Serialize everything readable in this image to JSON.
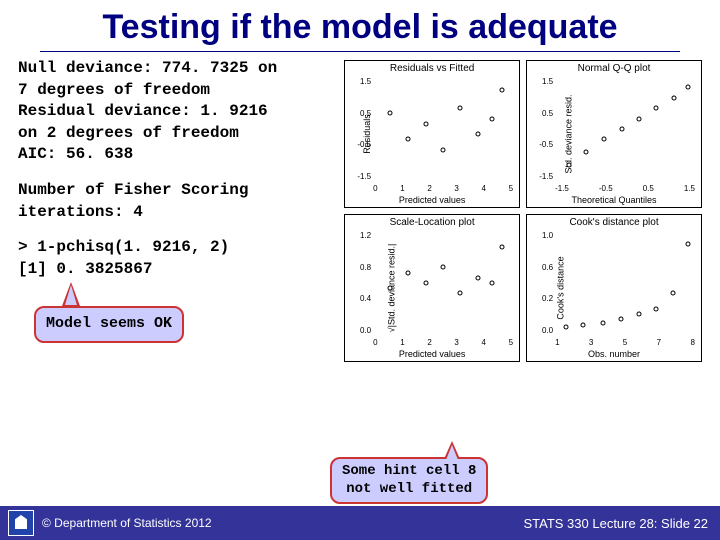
{
  "title": "Testing if the model is adequate",
  "output_block": {
    "line1": "Null deviance: 774. 7325   on",
    "line2": "7  degrees of freedom",
    "line3": "Residual deviance:  1. 9216",
    "line4": "on 2  degrees of freedom",
    "line5": "AIC: 56. 638"
  },
  "fisher_block": {
    "line1": "Number of Fisher Scoring",
    "line2": "iterations: 4"
  },
  "pchisq_block": {
    "line1": "> 1-pchisq(1. 9216, 2)",
    "line2": "[1] 0. 3825867"
  },
  "callout1": "Model seems OK",
  "callout2_line1": "Some hint cell 8",
  "callout2_line2": "not well fitted",
  "plots": {
    "p1": {
      "title": "Residuals vs Fitted",
      "ylab": "Residuals",
      "xlab": "Predicted values",
      "yticks": [
        "1.5",
        "0.5",
        "-0.5",
        "-1.5"
      ],
      "xticks": [
        "0",
        "1",
        "2",
        "3",
        "4",
        "5"
      ],
      "points": [
        [
          12,
          35
        ],
        [
          25,
          60
        ],
        [
          38,
          45
        ],
        [
          50,
          70
        ],
        [
          62,
          30
        ],
        [
          75,
          55
        ],
        [
          85,
          40
        ],
        [
          92,
          12
        ]
      ]
    },
    "p2": {
      "title": "Normal Q-Q plot",
      "ylab": "Std. deviance resid.",
      "xlab": "Theoretical Quantiles",
      "yticks": [
        "1.5",
        "0.5",
        "-0.5",
        "-1.5"
      ],
      "xticks": [
        "-1.5",
        "-1.0",
        "-0.5",
        "0.0",
        "0.5",
        "1.0",
        "1.5"
      ],
      "points": [
        [
          10,
          85
        ],
        [
          22,
          72
        ],
        [
          35,
          60
        ],
        [
          48,
          50
        ],
        [
          60,
          40
        ],
        [
          72,
          30
        ],
        [
          85,
          20
        ],
        [
          95,
          10
        ]
      ]
    },
    "p3": {
      "title": "Scale-Location plot",
      "ylab": "√|Std. deviance resid.|",
      "xlab": "Predicted values",
      "yticks": [
        "1.2",
        "0.8",
        "0.4",
        "0.0"
      ],
      "xticks": [
        "0",
        "1",
        "2",
        "3",
        "4",
        "5"
      ],
      "points": [
        [
          12,
          55
        ],
        [
          25,
          40
        ],
        [
          38,
          50
        ],
        [
          50,
          35
        ],
        [
          62,
          60
        ],
        [
          75,
          45
        ],
        [
          85,
          50
        ],
        [
          92,
          15
        ]
      ]
    },
    "p4": {
      "title": "Cook's distance plot",
      "ylab": "Cook's distance",
      "xlab": "Obs. number",
      "yticks": [
        "1.0",
        "0.6",
        "0.2",
        "0.0"
      ],
      "xticks": [
        "1",
        "2",
        "3",
        "4",
        "5",
        "6",
        "7",
        "8"
      ],
      "points": [
        [
          8,
          92
        ],
        [
          20,
          90
        ],
        [
          34,
          88
        ],
        [
          47,
          85
        ],
        [
          60,
          80
        ],
        [
          72,
          75
        ],
        [
          84,
          60
        ],
        [
          95,
          12
        ]
      ]
    }
  },
  "footer": {
    "copyright": "© Department of Statistics 2012",
    "page": "STATS 330 Lecture 28: Slide 22"
  },
  "colors": {
    "title": "#000080",
    "callout_bg": "#ccccff",
    "callout_border": "#cc3333",
    "footer_bg": "#333399"
  }
}
